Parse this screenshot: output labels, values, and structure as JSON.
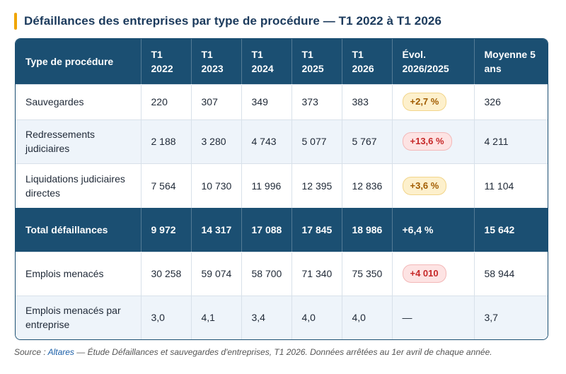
{
  "title": "Défaillances des entreprises par type de procédure — T1 2022 à T1 2026",
  "header": {
    "col0": "Type de procédure",
    "years": [
      "T1 2022",
      "T1 2023",
      "T1 2024",
      "T1 2025",
      "T1 2026"
    ],
    "evol": "Évol. 2026/2025",
    "avg": "Moyenne 5 ans"
  },
  "rows": [
    {
      "label": "Sauvegardes",
      "values": [
        "220",
        "307",
        "349",
        "373",
        "383"
      ],
      "evol": "+2,7 %",
      "evol_tone": "amber",
      "avg": "326"
    },
    {
      "label": "Redressements judiciaires",
      "values": [
        "2 188",
        "3 280",
        "4 743",
        "5 077",
        "5 767"
      ],
      "evol": "+13,6 %",
      "evol_tone": "red",
      "avg": "4 211"
    },
    {
      "label": "Liquidations judiciaires directes",
      "values": [
        "7 564",
        "10 730",
        "11 996",
        "12 395",
        "12 836"
      ],
      "evol": "+3,6 %",
      "evol_tone": "amber",
      "avg": "11 104"
    },
    {
      "label": "Total défaillances",
      "values": [
        "9 972",
        "14 317",
        "17 088",
        "17 845",
        "18 986"
      ],
      "evol": "+6,4 %",
      "avg": "15 642"
    },
    {
      "label": "Emplois menacés",
      "values": [
        "30 258",
        "59 074",
        "58 700",
        "71 340",
        "75 350"
      ],
      "evol": "+4 010",
      "evol_tone": "red",
      "avg": "58 944"
    },
    {
      "label": "Emplois menacés par entreprise",
      "values": [
        "3,0",
        "4,1",
        "3,4",
        "4,0",
        "4,0"
      ],
      "evol": "—",
      "avg": "3,7"
    }
  ],
  "source": {
    "prefix": "Source : ",
    "link": "Altares",
    "text": " — Étude Défaillances et sauvegardes d'entreprises, T1 2026. Données arrêtées au 1er avril de chaque année."
  },
  "colors": {
    "header_bg": "#1b4f72",
    "accent": "#f0a500",
    "badge_amber": "#fdf0cc",
    "badge_red": "#fde3e3"
  }
}
